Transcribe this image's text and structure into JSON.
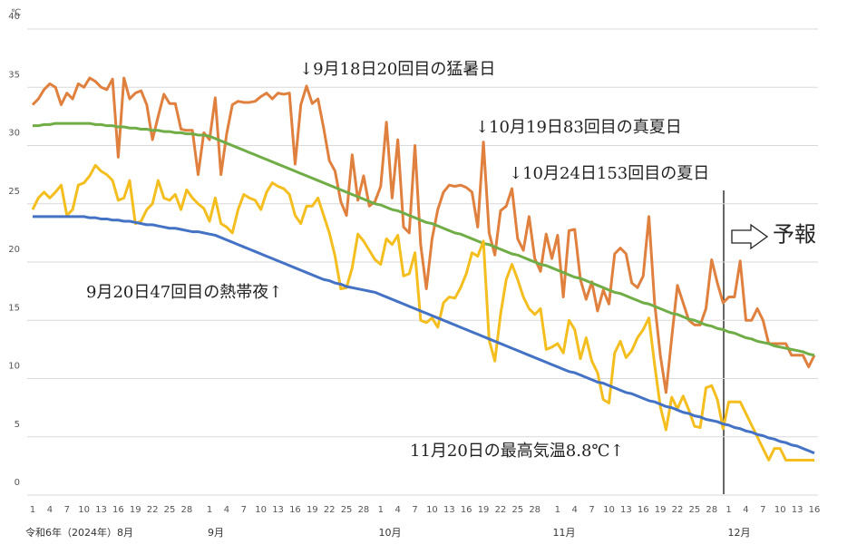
{
  "chart_data": {
    "type": "line",
    "unit": "℃",
    "categories": [
      "1",
      null,
      null,
      "4",
      null,
      null,
      "7",
      null,
      null,
      "10",
      null,
      null,
      "13",
      null,
      null,
      "16",
      null,
      null,
      "19",
      null,
      null,
      "22",
      null,
      null,
      "25",
      null,
      null,
      "28",
      null,
      null,
      null,
      "1",
      null,
      null,
      "4",
      null,
      null,
      "7",
      null,
      null,
      "10",
      null,
      null,
      "13",
      null,
      null,
      "16",
      null,
      null,
      "19",
      null,
      null,
      "22",
      null,
      null,
      "25",
      null,
      null,
      "28",
      null,
      null,
      "1",
      null,
      null,
      "4",
      null,
      null,
      "7",
      null,
      null,
      "10",
      null,
      null,
      "13",
      null,
      null,
      "16",
      null,
      null,
      "19",
      null,
      null,
      "22",
      null,
      null,
      "25",
      null,
      null,
      "28",
      null,
      null,
      null,
      "1",
      null,
      null,
      "4",
      null,
      null,
      "7",
      null,
      null,
      "10",
      null,
      null,
      "13",
      null,
      null,
      "16",
      null,
      null,
      "19",
      null,
      null,
      "22",
      null,
      null,
      "25",
      null,
      null,
      "28",
      null,
      null,
      "1",
      null,
      null,
      "4",
      null,
      null,
      "7",
      null,
      null,
      "10",
      null,
      null,
      "13",
      null,
      null,
      "16"
    ],
    "month_labels": [
      "令和6年（2024年）8月",
      "9月",
      "10月",
      "11月",
      "12月"
    ],
    "series": [
      {
        "color": "#E0803E",
        "values": [
          33.5,
          34,
          34.8,
          35.3,
          35,
          33.5,
          34.5,
          34,
          35.3,
          35,
          35.8,
          35.5,
          35,
          34.8,
          35.7,
          29,
          35.8,
          34,
          34.5,
          34.7,
          33.5,
          30.5,
          32.5,
          34.4,
          33.6,
          33.6,
          31.4,
          31.3,
          31.3,
          27.5,
          31.1,
          30.5,
          34.1,
          27.5,
          31,
          33.5,
          33.8,
          33.7,
          33.7,
          33.8,
          34.2,
          34.5,
          34,
          34.5,
          34.4,
          34.5,
          28.4,
          33.5,
          35.1,
          33.6,
          34,
          31.5,
          28.7,
          27.8,
          25.2,
          24,
          29.2,
          25.3,
          27.4,
          24.8,
          25.2,
          26.5,
          32,
          25.5,
          30.5,
          23,
          22.5,
          30,
          21.5,
          17.7,
          22,
          24.5,
          26,
          26.6,
          26.5,
          26.6,
          26.4,
          26,
          23,
          30.3,
          22.5,
          20.6,
          24.4,
          24.8,
          26.3,
          22,
          21,
          23.9,
          20.3,
          19.2,
          22.4,
          20.3,
          22.3,
          17,
          22.7,
          22.8,
          18.5,
          16.8,
          18.3,
          15.8,
          17.6,
          16.4,
          20.7,
          21.2,
          20.7,
          18.2,
          17.8,
          18.8,
          23.9,
          16.5,
          12,
          8.8,
          13.5,
          18,
          16.5,
          15,
          14.6,
          14.6,
          16,
          20.2,
          18.2,
          16.5,
          17,
          17,
          20.1,
          15,
          15,
          16,
          15,
          13,
          13,
          13,
          13,
          12,
          12,
          12,
          11,
          12
        ]
      },
      {
        "color": "#70AD47",
        "values": [
          31.7,
          31.7,
          31.8,
          31.8,
          31.9,
          31.9,
          31.9,
          31.9,
          31.9,
          31.9,
          31.9,
          31.8,
          31.8,
          31.7,
          31.7,
          31.6,
          31.6,
          31.5,
          31.5,
          31.4,
          31.4,
          31.3,
          31.3,
          31.2,
          31.2,
          31.1,
          31.1,
          31.0,
          31.0,
          30.9,
          30.9,
          30.8,
          30.6,
          30.4,
          30.2,
          30.0,
          29.8,
          29.6,
          29.4,
          29.2,
          29.0,
          28.8,
          28.6,
          28.4,
          28.2,
          28.0,
          27.8,
          27.6,
          27.4,
          27.2,
          27.0,
          26.8,
          26.6,
          26.4,
          26.2,
          26.0,
          25.8,
          25.6,
          25.4,
          25.2,
          25.0,
          24.9,
          24.7,
          24.5,
          24.4,
          24.2,
          24.0,
          23.8,
          23.6,
          23.4,
          23.3,
          23.1,
          22.9,
          22.7,
          22.5,
          22.4,
          22.2,
          22.0,
          21.8,
          21.6,
          21.5,
          21.3,
          21.1,
          20.9,
          20.7,
          20.6,
          20.4,
          20.2,
          20.0,
          19.8,
          19.7,
          19.5,
          19.3,
          19.1,
          18.9,
          18.7,
          18.6,
          18.4,
          18.2,
          18.0,
          17.8,
          17.6,
          17.4,
          17.3,
          17.1,
          16.9,
          16.7,
          16.5,
          16.4,
          16.2,
          16.0,
          15.8,
          15.6,
          15.5,
          15.3,
          15.1,
          15.0,
          14.8,
          14.6,
          14.5,
          14.3,
          14.2,
          14.0,
          13.9,
          13.7,
          13.5,
          13.4,
          13.2,
          13.1,
          13.0,
          12.8,
          12.7,
          12.6,
          12.5,
          12.4,
          12.3,
          12.1,
          12.0
        ]
      },
      {
        "color": "#F4BE1F",
        "values": [
          24.5,
          25.5,
          26,
          25.5,
          26,
          26.6,
          24,
          24.5,
          26.6,
          26.8,
          27.4,
          28.3,
          27.8,
          27.5,
          27,
          25.3,
          25.5,
          27,
          23.3,
          23.5,
          24.5,
          25,
          27,
          25.5,
          25.3,
          25.8,
          24.5,
          26.2,
          25.5,
          25,
          24.6,
          23.5,
          25.5,
          23.3,
          23,
          22.5,
          24.5,
          25.8,
          25.5,
          25.3,
          24.5,
          26,
          26.8,
          26.5,
          26.3,
          25.8,
          24,
          23.3,
          24.8,
          24.8,
          25.5,
          24,
          22.5,
          20.5,
          17.7,
          17.8,
          19.5,
          22.4,
          21.8,
          21,
          20.2,
          19.8,
          22,
          21.5,
          22.3,
          18.8,
          19,
          20.8,
          15,
          14.8,
          15.2,
          14.4,
          16.5,
          17,
          16.9,
          17.8,
          19,
          20.8,
          20.5,
          21.8,
          13.3,
          11.5,
          15.5,
          18.5,
          19.8,
          18.5,
          17,
          16,
          15.5,
          16,
          12.5,
          12.7,
          13,
          12.2,
          15,
          14.2,
          11.7,
          13.5,
          11.5,
          10.5,
          8.2,
          7.9,
          12.2,
          13.2,
          11.8,
          12.4,
          13.5,
          14.2,
          15.2,
          11.2,
          7.6,
          5.6,
          8.4,
          7.4,
          8.5,
          7.3,
          5.9,
          5.8,
          9.2,
          9.4,
          8.2,
          5.7,
          8,
          8,
          8,
          7,
          6,
          5,
          4,
          3,
          4,
          4,
          3,
          3,
          3,
          3,
          3,
          3
        ]
      },
      {
        "color": "#4472C4",
        "values": [
          23.9,
          23.9,
          23.9,
          23.9,
          23.9,
          23.9,
          23.9,
          23.9,
          23.9,
          23.9,
          23.8,
          23.8,
          23.7,
          23.7,
          23.6,
          23.6,
          23.5,
          23.5,
          23.4,
          23.3,
          23.2,
          23.2,
          23.1,
          23.0,
          22.9,
          22.9,
          22.8,
          22.7,
          22.6,
          22.6,
          22.5,
          22.4,
          22.3,
          22.1,
          21.9,
          21.7,
          21.5,
          21.3,
          21.1,
          20.9,
          20.7,
          20.5,
          20.3,
          20.1,
          19.9,
          19.7,
          19.5,
          19.3,
          19.1,
          18.9,
          18.7,
          18.5,
          18.4,
          18.2,
          18.1,
          17.9,
          17.8,
          17.7,
          17.6,
          17.5,
          17.4,
          17.2,
          17.0,
          16.8,
          16.6,
          16.4,
          16.2,
          16.0,
          15.8,
          15.6,
          15.4,
          15.2,
          15.0,
          14.8,
          14.6,
          14.4,
          14.2,
          14.0,
          13.8,
          13.6,
          13.4,
          13.2,
          13.0,
          12.8,
          12.6,
          12.4,
          12.2,
          12.0,
          11.8,
          11.6,
          11.4,
          11.2,
          11.0,
          10.8,
          10.6,
          10.5,
          10.3,
          10.1,
          9.9,
          9.7,
          9.6,
          9.4,
          9.2,
          9.0,
          8.8,
          8.7,
          8.5,
          8.3,
          8.1,
          8.0,
          7.8,
          7.6,
          7.5,
          7.3,
          7.1,
          7.0,
          6.8,
          6.7,
          6.5,
          6.4,
          6.3,
          6.1,
          6.0,
          5.8,
          5.7,
          5.5,
          5.4,
          5.2,
          5.1,
          4.9,
          4.8,
          4.6,
          4.5,
          4.3,
          4.2,
          4.0,
          3.8,
          3.6
        ]
      }
    ],
    "ylim": [
      0,
      40
    ],
    "yticks": [
      0,
      5,
      10,
      15,
      20,
      25,
      30,
      35,
      40
    ],
    "grid": true,
    "annotations": [
      "↓9月18日20回目の猛暑日",
      "↓10月19日83回目の真夏日",
      "↓10月24日153回目の夏日",
      "9月20日47回目の熱帯夜↑",
      "11月20日の最高気温8.8℃↑",
      "予報"
    ]
  }
}
